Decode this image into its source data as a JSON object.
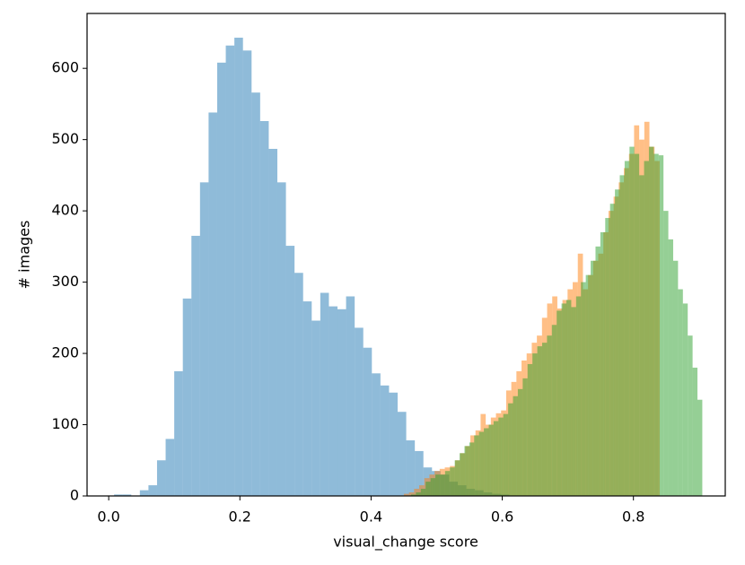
{
  "chart_data": {
    "type": "histogram",
    "xlabel": "visual_change score",
    "ylabel": "# images",
    "xlim": [
      -0.033,
      0.94
    ],
    "ylim": [
      0,
      677
    ],
    "xticks": [
      {
        "value": 0,
        "label": "0.0"
      },
      {
        "value": 0.2,
        "label": "0.2"
      },
      {
        "value": 0.4,
        "label": "0.4"
      },
      {
        "value": 0.6,
        "label": "0.6"
      },
      {
        "value": 0.8,
        "label": "0.8"
      }
    ],
    "yticks": [
      0,
      100,
      200,
      300,
      400,
      500,
      600
    ],
    "grid": false,
    "opacity": 0.5,
    "series": [
      {
        "color": "#1f77b4",
        "bins": [
          0.0082,
          0.0213,
          0.0344,
          0.0475,
          0.0606,
          0.0737,
          0.0868,
          0.0999,
          0.113,
          0.1261,
          0.1392,
          0.1523,
          0.1654,
          0.1785,
          0.1916,
          0.2047,
          0.2178,
          0.2309,
          0.244,
          0.2571,
          0.2702,
          0.2833,
          0.2964,
          0.3095,
          0.3226,
          0.3357,
          0.3488,
          0.3619,
          0.375,
          0.3881,
          0.4012,
          0.4143,
          0.4274,
          0.4405,
          0.4536,
          0.4667,
          0.4798,
          0.4929,
          0.506,
          0.5191,
          0.5322,
          0.5453,
          0.5584,
          0.5715,
          0.5846,
          0.5977,
          0.6108
        ],
        "values": [
          2,
          2,
          0,
          8,
          15,
          50,
          80,
          175,
          277,
          365,
          440,
          538,
          608,
          632,
          643,
          625,
          566,
          526,
          487,
          440,
          351,
          313,
          273,
          246,
          285,
          266,
          262,
          280,
          236,
          208,
          172,
          155,
          145,
          118,
          78,
          63,
          40,
          35,
          30,
          20,
          15,
          10,
          8,
          5,
          3,
          2
        ]
      },
      {
        "color": "#ff7f0e",
        "bins": [
          0.45,
          0.4578,
          0.4656,
          0.4734,
          0.4812,
          0.489,
          0.4968,
          0.5046,
          0.5124,
          0.5202,
          0.528,
          0.5358,
          0.5436,
          0.5514,
          0.5592,
          0.567,
          0.5748,
          0.5826,
          0.5904,
          0.5982,
          0.606,
          0.6138,
          0.6216,
          0.6294,
          0.6372,
          0.645,
          0.6528,
          0.6606,
          0.6684,
          0.6762,
          0.684,
          0.6918,
          0.6996,
          0.7074,
          0.7152,
          0.723,
          0.7308,
          0.7386,
          0.7464,
          0.7542,
          0.762,
          0.7698,
          0.7776,
          0.7854,
          0.7932,
          0.801,
          0.8088,
          0.8166,
          0.8244,
          0.8322,
          0.84
        ],
        "values": [
          3,
          5,
          10,
          15,
          25,
          30,
          35,
          38,
          40,
          42,
          50,
          60,
          70,
          85,
          92,
          115,
          100,
          110,
          116,
          120,
          148,
          160,
          175,
          190,
          200,
          215,
          225,
          250,
          270,
          280,
          263,
          275,
          290,
          300,
          340,
          290,
          310,
          330,
          340,
          370,
          400,
          420,
          440,
          460,
          480,
          520,
          500,
          525,
          490,
          470
        ]
      },
      {
        "color": "#2ca02c",
        "bins": [
          0.461,
          0.4684,
          0.4758,
          0.4832,
          0.4906,
          0.498,
          0.5054,
          0.5128,
          0.5202,
          0.5276,
          0.535,
          0.5424,
          0.5498,
          0.5572,
          0.5646,
          0.572,
          0.5794,
          0.5868,
          0.5942,
          0.6016,
          0.609,
          0.6164,
          0.6238,
          0.6312,
          0.6386,
          0.646,
          0.6534,
          0.6608,
          0.6682,
          0.6756,
          0.683,
          0.6904,
          0.6978,
          0.7052,
          0.7126,
          0.72,
          0.7274,
          0.7348,
          0.7422,
          0.7496,
          0.757,
          0.7644,
          0.7718,
          0.7792,
          0.7866,
          0.794,
          0.8014,
          0.8088,
          0.8162,
          0.8236,
          0.831,
          0.8384,
          0.8458,
          0.8532,
          0.8606,
          0.868,
          0.8754,
          0.8828,
          0.8902,
          0.8976,
          0.905
        ],
        "values": [
          2,
          5,
          10,
          20,
          25,
          30,
          30,
          35,
          40,
          50,
          60,
          70,
          75,
          85,
          90,
          95,
          100,
          105,
          110,
          115,
          130,
          140,
          150,
          165,
          185,
          200,
          210,
          215,
          225,
          240,
          260,
          270,
          275,
          265,
          280,
          300,
          310,
          330,
          350,
          370,
          390,
          410,
          430,
          450,
          470,
          490,
          480,
          450,
          470,
          490,
          480,
          478,
          400,
          360,
          330,
          290,
          270,
          225,
          180,
          135
        ]
      }
    ]
  }
}
